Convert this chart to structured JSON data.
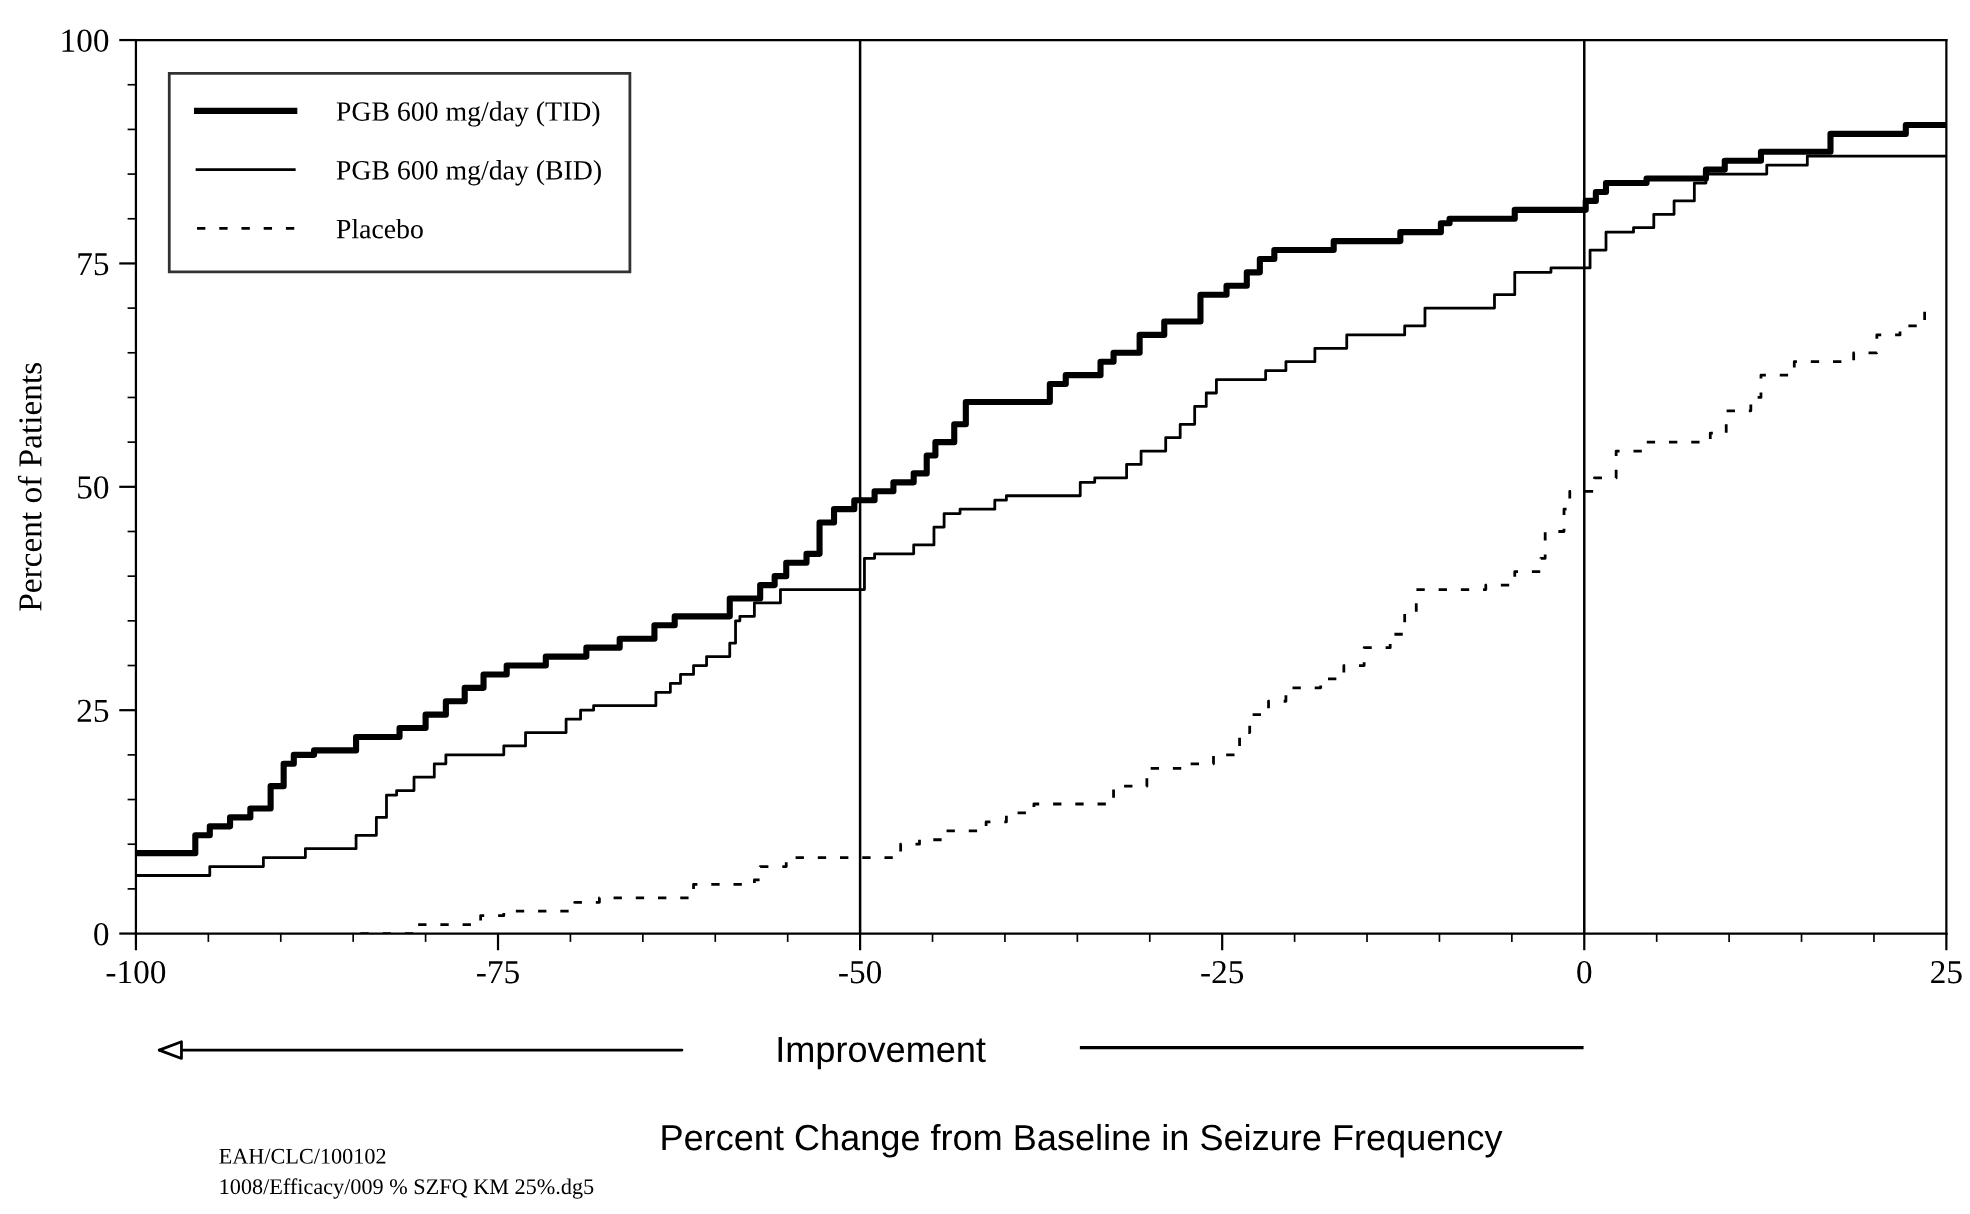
{
  "chart_data": {
    "type": "step",
    "xlabel": "Percent Change from Baseline in Seizure Frequency",
    "ylabel": "Percent of Patients",
    "xlim": [
      -100,
      25
    ],
    "xticks": [
      -100,
      -75,
      -50,
      -25,
      0,
      25
    ],
    "ylim": [
      0,
      100
    ],
    "yticks": [
      0,
      25,
      50,
      75,
      100
    ],
    "grid": false,
    "legend": "top left",
    "marker": "none",
    "ref_lines": [
      {
        "axis": "x",
        "value": -50,
        "color": "#000000"
      },
      {
        "axis": "x",
        "value": 0,
        "color": "#000000"
      }
    ],
    "annotations": [
      "Improvement",
      "EAH/CLC/100102",
      "1008/Efficacy/009 % SZFQ KM 25%.dg5"
    ],
    "series": [
      {
        "name": "PGB 600 mg/day (TID)",
        "color": "#000000",
        "line_style": "solid",
        "x": [
          -100,
          -95.9,
          -94.9,
          -93.5,
          -92.1,
          -90.7,
          -89.8,
          -89.1,
          -87.7,
          -84.8,
          -81.8,
          -80,
          -78.6,
          -77.3,
          -76,
          -74.4,
          -71.7,
          -68.9,
          -66.6,
          -64.2,
          -62.8,
          -59,
          -56.9,
          -55.9,
          -55.1,
          -53.7,
          -52.8,
          -51.8,
          -50.4,
          -49,
          -47.7,
          -46.3,
          -45.4,
          -44.8,
          -43.5,
          -42.7,
          -36.9,
          -35.8,
          -33.4,
          -32.5,
          -30.7,
          -29,
          -26.5,
          -24.7,
          -23.3,
          -22.4,
          -21.4,
          -17.3,
          -12.7,
          -9.9,
          -9.3,
          -4.8,
          0.1,
          0.8,
          1.5,
          4.3,
          8.4,
          9.7,
          12.2,
          17,
          22.2,
          25
        ],
        "values": [
          9,
          11,
          12,
          13,
          14,
          16.5,
          19,
          20,
          20.5,
          22,
          23,
          24.5,
          26,
          27.5,
          29,
          30,
          31,
          32,
          33,
          34.5,
          35.5,
          37.5,
          39,
          40,
          41.5,
          42.5,
          46,
          47.5,
          48.5,
          49.5,
          50.5,
          51.5,
          53.5,
          55,
          57,
          59.5,
          61.5,
          62.5,
          64,
          65,
          67,
          68.5,
          71.5,
          72.5,
          74,
          75.5,
          76.5,
          77.5,
          78.5,
          79.5,
          80,
          81,
          82,
          83,
          84,
          84.5,
          85.5,
          86.5,
          87.5,
          89.5,
          90.5,
          90.5
        ]
      },
      {
        "name": "PGB 600 mg/day (BID)",
        "color": "#000000",
        "line_style": "solid",
        "x": [
          -100,
          -94.9,
          -91.2,
          -88.3,
          -84.8,
          -83.4,
          -82.7,
          -82,
          -80.8,
          -79.4,
          -78.6,
          -74.6,
          -73.1,
          -70.3,
          -69.3,
          -68.4,
          -64.1,
          -63.1,
          -62.4,
          -61.5,
          -60.6,
          -59,
          -58.6,
          -58.3,
          -57.3,
          -55.5,
          -49.7,
          -49,
          -46.3,
          -44.9,
          -44.2,
          -43.1,
          -40.7,
          -39.9,
          -34.8,
          -33.8,
          -31.6,
          -30.6,
          -28.9,
          -27.9,
          -26.9,
          -26.1,
          -25.4,
          -22,
          -20.6,
          -18.6,
          -16.4,
          -12.4,
          -11,
          -6.2,
          -4.8,
          -2.3,
          0.4,
          1.5,
          3.4,
          4.8,
          6.2,
          7.6,
          8.4,
          12.6,
          15.4,
          25
        ],
        "values": [
          6.5,
          7.5,
          8.5,
          9.5,
          11,
          13,
          15.5,
          16,
          17.5,
          19,
          20,
          21,
          22.5,
          24,
          25,
          25.5,
          27,
          28,
          29,
          30,
          31,
          32.5,
          35,
          35.5,
          37,
          38.5,
          42,
          42.5,
          43.5,
          45.5,
          47,
          47.5,
          48.5,
          49,
          50.5,
          51,
          52.5,
          54,
          55.5,
          57,
          59,
          60.5,
          62,
          63,
          64,
          65.5,
          67,
          68,
          70,
          71.5,
          74,
          74.5,
          76.5,
          78.5,
          79,
          80.5,
          82,
          84,
          85,
          86,
          87,
          87
        ]
      },
      {
        "name": "Placebo",
        "color": "#000000",
        "line_style": "dashed",
        "x": [
          -84.5,
          -80.8,
          -79,
          -76.2,
          -74.6,
          -69.7,
          -68,
          -61.5,
          -57.3,
          -56.9,
          -55.1,
          -47.2,
          -45.9,
          -44.1,
          -41.3,
          -39.9,
          -38,
          -32.5,
          -30.2,
          -27.5,
          -25.6,
          -23.8,
          -23.1,
          -21.8,
          -20.6,
          -18.2,
          -16.6,
          -15.2,
          -13.4,
          -12.4,
          -11.6,
          -6.8,
          -4.8,
          -3,
          -2.7,
          -1.4,
          -1,
          0.7,
          2.2,
          4.3,
          8.7,
          9.8,
          11.5,
          12.2,
          14.5,
          18.6,
          20.2,
          21.8,
          23.5,
          24
        ],
        "values": [
          0,
          1,
          1,
          2,
          2.5,
          3.5,
          4,
          5.5,
          6,
          7.5,
          8.5,
          10,
          10.5,
          11.5,
          12.5,
          13.5,
          14.5,
          16.5,
          18.5,
          19,
          20,
          22.5,
          24.5,
          26,
          27.5,
          28.5,
          30,
          32,
          33.5,
          36,
          38.5,
          39,
          40.5,
          42,
          45,
          47.5,
          49.5,
          51,
          54,
          55,
          56,
          58.5,
          60,
          62.5,
          64,
          65,
          67,
          68,
          70,
          70
        ]
      }
    ]
  }
}
